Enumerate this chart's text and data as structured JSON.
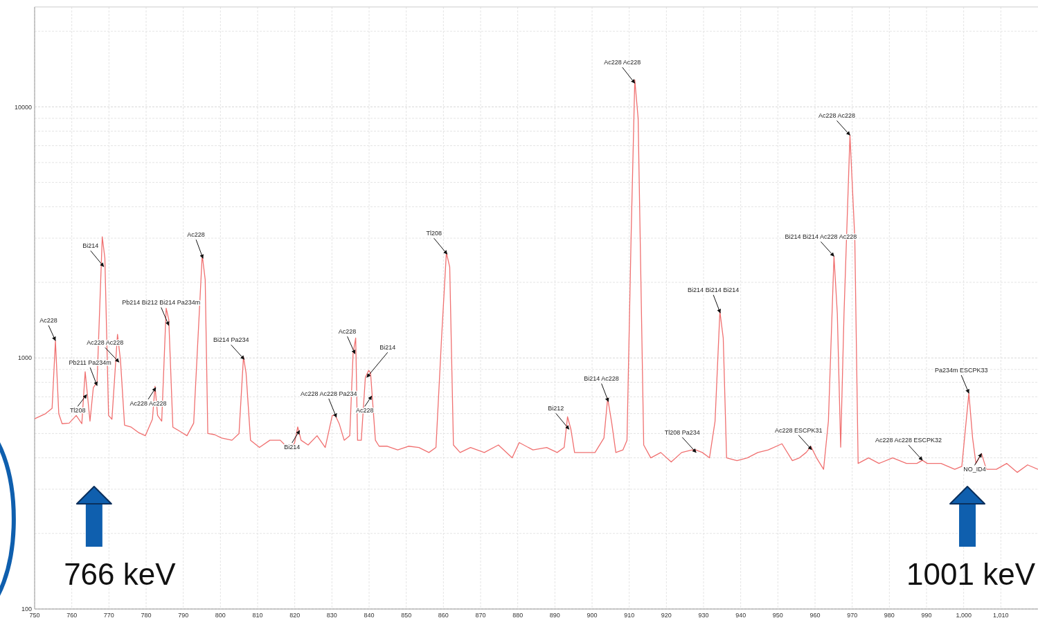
{
  "chart_data": {
    "type": "line",
    "log": "y",
    "grid": true,
    "marker": "none",
    "line_style": "solid",
    "xlim": [
      750,
      1020
    ],
    "ylim": [
      100,
      25000
    ],
    "xticks": [
      750,
      760,
      770,
      780,
      790,
      800,
      810,
      820,
      830,
      840,
      850,
      860,
      870,
      880,
      890,
      900,
      910,
      920,
      930,
      940,
      950,
      960,
      970,
      980,
      990,
      {
        "value": 1000,
        "label": "1,000"
      },
      {
        "value": 1010,
        "label": "1,010"
      }
    ],
    "yticks": [
      100,
      1000,
      10000
    ],
    "series": [
      {
        "color": "#f07070",
        "x": [
          750,
          752.8,
          754.7,
          755.6,
          756.5,
          757.4,
          759.3,
          761.2,
          762.7,
          763.6,
          764.9,
          765.8,
          766.8,
          768.2,
          768.9,
          769.9,
          770.8,
          772.3,
          773.1,
          774.2,
          776,
          777.9,
          779.8,
          781.7,
          782.4,
          783.1,
          784.2,
          785.4,
          786.1,
          787.2,
          789.1,
          791,
          792.8,
          795.1,
          795.9,
          796.6,
          798.4,
          800.3,
          803.1,
          805,
          806.2,
          806.9,
          808.1,
          810.5,
          813.3,
          816.1,
          818,
          819.9,
          820.8,
          821.7,
          823.6,
          826,
          828.2,
          830.1,
          830.9,
          832,
          833.3,
          834.8,
          835.7,
          836.4,
          836.9,
          837.9,
          839,
          839.9,
          840.4,
          841.7,
          842.7,
          844.9,
          847.7,
          850.6,
          853.4,
          856.1,
          858,
          859.5,
          860.8,
          861.7,
          862.7,
          864.5,
          867.3,
          871,
          874.8,
          878.5,
          880.4,
          884.1,
          887.8,
          890.6,
          892.5,
          893.4,
          894.3,
          895.3,
          898,
          900.8,
          903.2,
          904.2,
          905.3,
          906.4,
          908.3,
          909.4,
          910.5,
          911.5,
          912.4,
          913.9,
          915.8,
          918.5,
          921.3,
          924.1,
          926.9,
          927.8,
          929.7,
          931.6,
          933.1,
          934.4,
          935.3,
          936.2,
          939,
          941.8,
          944.6,
          947.4,
          951.1,
          953.9,
          955.8,
          957.6,
          958.9,
          960.4,
          962.3,
          963.6,
          965.1,
          966,
          966.9,
          967.8,
          969.4,
          970.7,
          971.6,
          974.4,
          977.2,
          980.9,
          984.6,
          987.4,
          988.9,
          990.2,
          993.9,
          997.6,
          999.5,
          1001.4,
          1002.4,
          1003.3,
          1004.8,
          1006.1,
          1008.8,
          1011.6,
          1014.4,
          1017.2,
          1020
        ],
        "values": [
          572,
          598,
          630,
          1172,
          600,
          547,
          550,
          590,
          547,
          881,
          560,
          762,
          800,
          3035,
          2500,
          590,
          570,
          1241,
          980,
          540,
          530,
          505,
          490,
          570,
          771,
          590,
          560,
          1578,
          1420,
          530,
          510,
          490,
          550,
          2572,
          2050,
          500,
          495,
          480,
          470,
          500,
          1010,
          870,
          470,
          440,
          470,
          470,
          440,
          455,
          531,
          470,
          450,
          490,
          440,
          590,
          590,
          545,
          470,
          490,
          1045,
          1200,
          470,
          470,
          837,
          892,
          870,
          470,
          445,
          445,
          430,
          445,
          440,
          420,
          440,
          1200,
          2625,
          2300,
          450,
          420,
          440,
          420,
          450,
          400,
          460,
          430,
          440,
          420,
          440,
          583,
          520,
          420,
          420,
          420,
          480,
          692,
          550,
          420,
          430,
          470,
          3000,
          12800,
          9000,
          450,
          400,
          420,
          385,
          420,
          430,
          431,
          420,
          400,
          560,
          1530,
          1200,
          400,
          390,
          400,
          420,
          430,
          455,
          390,
          400,
          420,
          444,
          400,
          360,
          560,
          2540,
          1500,
          441,
          1500,
          7710,
          3000,
          380,
          400,
          380,
          400,
          380,
          380,
          391,
          380,
          380,
          360,
          370,
          724,
          480,
          380,
          416,
          360,
          360,
          380,
          350,
          375,
          360
        ]
      }
    ],
    "annotations": [
      {
        "text": "Ac228",
        "x": 755.6,
        "y": 1172
      },
      {
        "text": "Tl208",
        "x": 764,
        "y": 714
      },
      {
        "text": "Pb211 Pa234m",
        "x": 766.8,
        "y": 776
      },
      {
        "text": "Bi214",
        "x": 768.6,
        "y": 2310
      },
      {
        "text": "Ac228 Ac228",
        "x": 772.7,
        "y": 962
      },
      {
        "text": "Ac228 Ac228",
        "x": 782.6,
        "y": 762
      },
      {
        "text": "Pb214 Bi212 Bi214 Pa234m",
        "x": 786.1,
        "y": 1347
      },
      {
        "text": "Ac228",
        "x": 795.3,
        "y": 2493
      },
      {
        "text": "Bi214 Pa234",
        "x": 806.4,
        "y": 987
      },
      {
        "text": "Bi214",
        "x": 821.3,
        "y": 514
      },
      {
        "text": "Ac228 Ac228 Pa234",
        "x": 831.2,
        "y": 580
      },
      {
        "text": "Ac228",
        "x": 836.2,
        "y": 1039
      },
      {
        "text": "Bi214",
        "x": 839.4,
        "y": 837
      },
      {
        "text": "Ac228",
        "x": 840.7,
        "y": 705
      },
      {
        "text": "Tl208",
        "x": 861,
        "y": 2590
      },
      {
        "text": "Bi212",
        "x": 893.8,
        "y": 520
      },
      {
        "text": "Bi214 Ac228",
        "x": 904.4,
        "y": 670
      },
      {
        "text": "Ac228 Ac228",
        "x": 911.5,
        "y": 12420
      },
      {
        "text": "Tl208 Pa234",
        "x": 928,
        "y": 420
      },
      {
        "text": "Bi214 Bi214 Bi214",
        "x": 934.5,
        "y": 1511
      },
      {
        "text": "Ac228 ESCPK31",
        "x": 959.1,
        "y": 431
      },
      {
        "text": "Bi214 Bi214 Ac228 Ac228",
        "x": 965.1,
        "y": 2540
      },
      {
        "text": "Ac228 Ac228",
        "x": 969.4,
        "y": 7710
      },
      {
        "text": "Ac228 Ac228 ESCPK32",
        "x": 988.9,
        "y": 391
      },
      {
        "text": "Pa234m ESCPK33",
        "x": 1001.4,
        "y": 724
      },
      {
        "text": "NO_ID4",
        "x": 1004.8,
        "y": 416
      }
    ],
    "ref_lines": [
      {
        "axis": "x",
        "value": 766,
        "label": "766 keV",
        "color": "#0f5fae"
      },
      {
        "axis": "x",
        "value": 1001,
        "label": "1001 keV",
        "color": "#0f5fae"
      }
    ]
  }
}
